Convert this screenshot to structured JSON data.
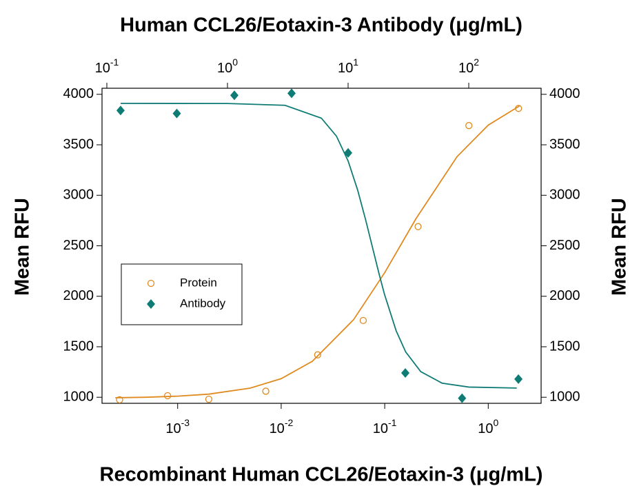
{
  "chart_data": {
    "type": "scatter",
    "x_label": "Recombinant Human CCL26/Eotaxin-3 (μg/mL)",
    "x2_label": "Human CCL26/Eotaxin-3 Antibody (μg/mL)",
    "y_label": "Mean RFU",
    "y2_label": "Mean RFU",
    "xscale": "log",
    "x2scale": "log",
    "xlim": [
      0.000186,
      3.24
    ],
    "x2lim": [
      0.0912,
      398
    ],
    "ylim": [
      940,
      4060
    ],
    "y2lim": [
      940,
      4060
    ],
    "xticks": [
      {
        "value": 0.001,
        "label": "10",
        "exponent": "-3"
      },
      {
        "value": 0.01,
        "label": "10",
        "exponent": "-2"
      },
      {
        "value": 0.1,
        "label": "10",
        "exponent": "-1"
      },
      {
        "value": 1,
        "label": "10",
        "exponent": "0"
      }
    ],
    "x2ticks": [
      {
        "value": 0.1,
        "label": "10",
        "exponent": "-1"
      },
      {
        "value": 1,
        "label": "10",
        "exponent": "0"
      },
      {
        "value": 10,
        "label": "10",
        "exponent": "1"
      },
      {
        "value": 100,
        "label": "10",
        "exponent": "2"
      }
    ],
    "yticks": [
      1000,
      1500,
      2000,
      2500,
      3000,
      3500,
      4000
    ],
    "y2ticks": [
      1000,
      1500,
      2000,
      2500,
      3000,
      3500,
      4000
    ],
    "legend": "center left",
    "series": [
      {
        "name": "Protein",
        "color": "#e08a1e",
        "marker": "circle",
        "xaxis": "x",
        "x": [
          0.000275,
          0.0008,
          0.002,
          0.0071,
          0.0225,
          0.062,
          0.21,
          0.65,
          1.96
        ],
        "values": [
          975,
          1015,
          980,
          1060,
          1420,
          1760,
          2690,
          3690,
          3860
        ],
        "fit_x": [
          0.00025,
          0.0005,
          0.001,
          0.002,
          0.005,
          0.01,
          0.02,
          0.05,
          0.1,
          0.2,
          0.5,
          1,
          2
        ],
        "fit_values": [
          995,
          1000,
          1011,
          1031,
          1090,
          1184,
          1356,
          1768,
          2234,
          2767,
          3383,
          3695,
          3884
        ]
      },
      {
        "name": "Antibody",
        "color": "#0f7b75",
        "marker": "diamond",
        "xaxis": "x2",
        "x": [
          0.13,
          0.38,
          1.14,
          3.4,
          10,
          29.8,
          88,
          258
        ],
        "values": [
          3840,
          3810,
          3990,
          4010,
          3420,
          1240,
          990,
          1180
        ],
        "fit_x": [
          0.13,
          1,
          3,
          6,
          8,
          10,
          12,
          14,
          16,
          18,
          20,
          25,
          30,
          40,
          60,
          100,
          250
        ],
        "fit_values": [
          3910,
          3909,
          3891,
          3764,
          3586,
          3340,
          3051,
          2753,
          2474,
          2228,
          2021,
          1659,
          1449,
          1254,
          1140,
          1101,
          1091
        ]
      }
    ]
  }
}
